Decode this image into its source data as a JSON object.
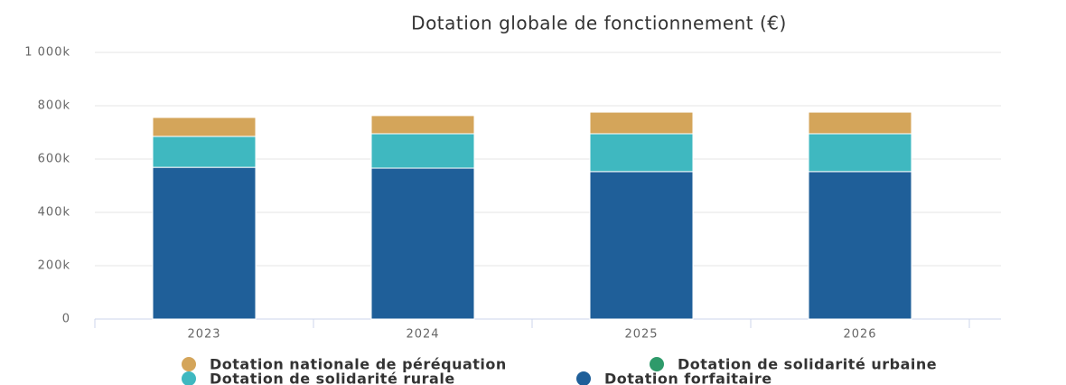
{
  "chart_data": {
    "type": "stacked_bar",
    "title": "Dotation globale de fonctionnement (€)",
    "categories": [
      "2023",
      "2024",
      "2025",
      "2026"
    ],
    "series": [
      {
        "name": "Dotation forfaitaire",
        "color": "#1f5f99",
        "values": [
          569000,
          566000,
          553000,
          553000
        ]
      },
      {
        "name": "Dotation de solidarité urbaine",
        "color": "#2e9a6a",
        "values": [
          0,
          0,
          0,
          0
        ]
      },
      {
        "name": "Dotation de solidarité rurale",
        "color": "#3fb8c0",
        "values": [
          116000,
          129000,
          142000,
          142000
        ]
      },
      {
        "name": "Dotation nationale de péréquation",
        "color": "#d4a55a",
        "values": [
          71000,
          68000,
          81000,
          81000
        ]
      }
    ],
    "ylim": [
      0,
      1000000
    ],
    "yticks": [
      0,
      {
        "value": 200000,
        "label": "200k"
      },
      {
        "value": 400000,
        "label": "400k"
      },
      {
        "value": 600000,
        "label": "600k"
      },
      {
        "value": 800000,
        "label": "800k"
      },
      {
        "value": 1000000,
        "label": "1 000k"
      }
    ],
    "grid": true
  }
}
